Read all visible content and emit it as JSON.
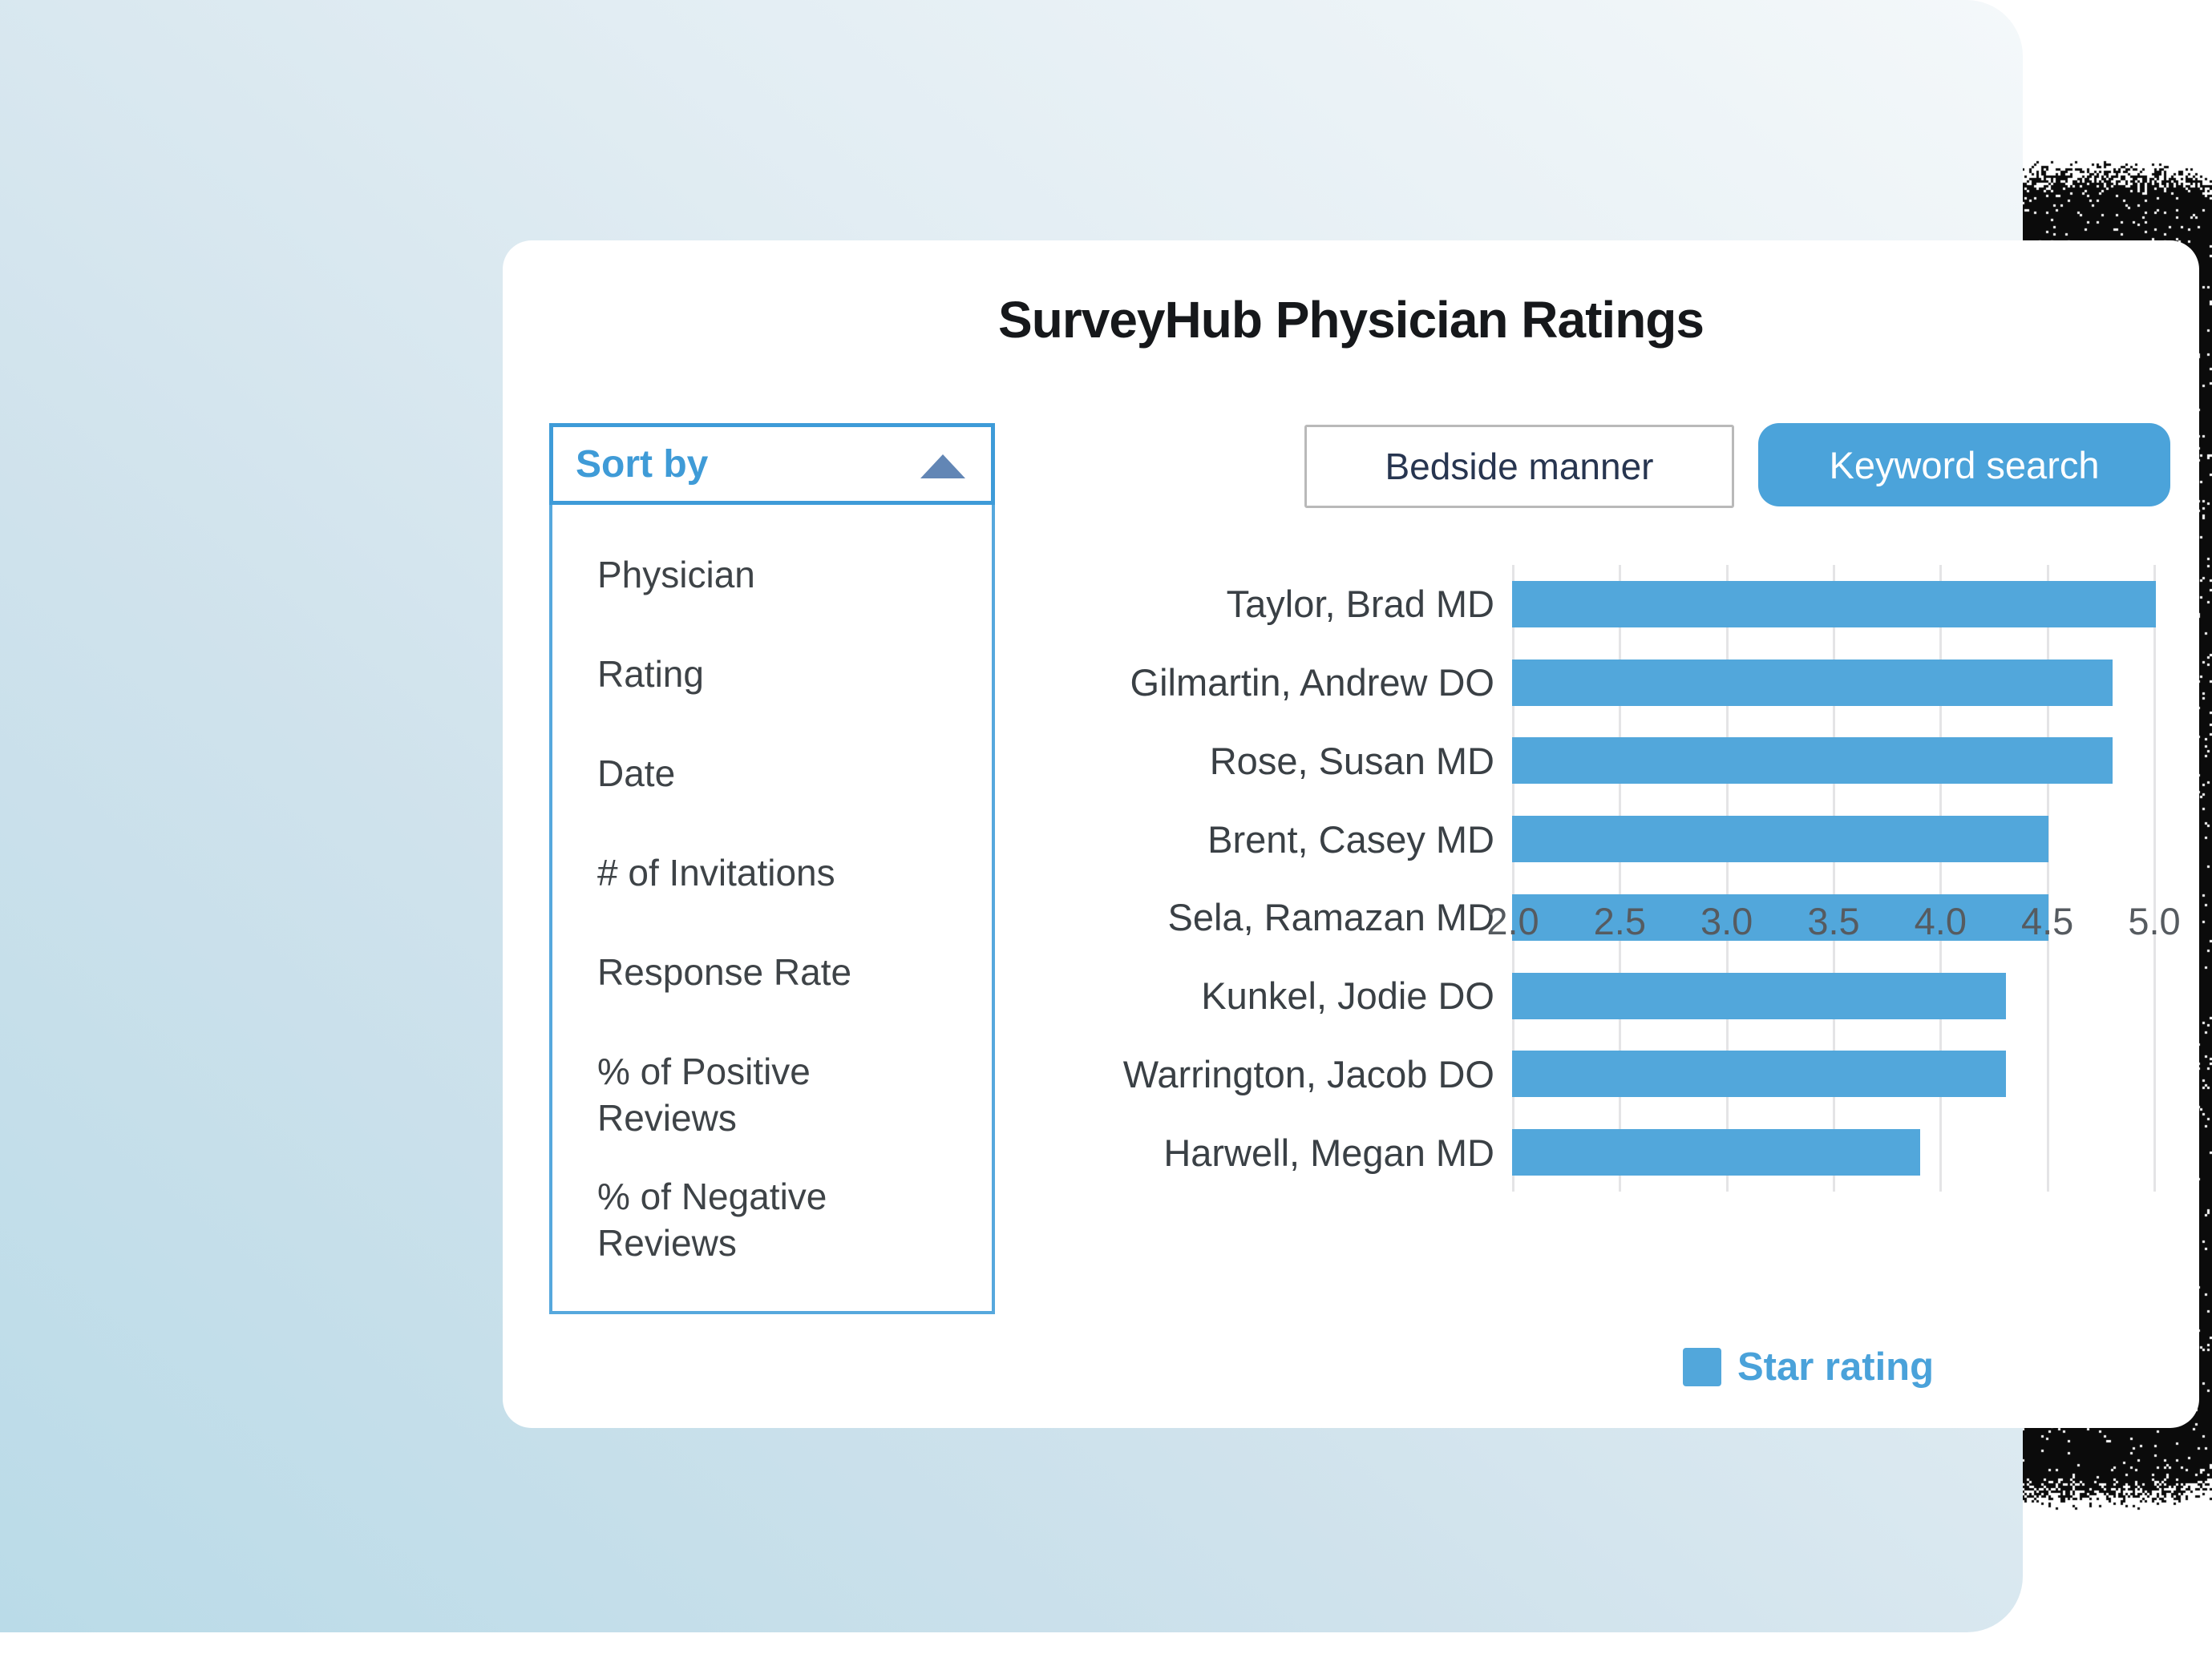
{
  "page": {
    "title": "SurveyHub Physician Ratings"
  },
  "sort_panel": {
    "header_label": "Sort by",
    "collapse_icon": "triangle-up-icon",
    "items": [
      "Physician",
      "Rating",
      "Date",
      "# of Invitations",
      "Response Rate",
      "% of Positive Reviews",
      "% of Negative Reviews"
    ]
  },
  "controls": {
    "metric_selector_value": "Bedside manner",
    "search_button_label": "Keyword search"
  },
  "chart_data": {
    "type": "bar",
    "orientation": "horizontal",
    "categories": [
      "Taylor, Brad MD",
      "Gilmartin, Andrew DO",
      "Rose, Susan MD",
      "Brent, Casey MD",
      "Sela, Ramazan MD",
      "Kunkel, Jodie DO",
      "Warrington, Jacob DO",
      "Harwell, Megan MD"
    ],
    "values": [
      5.0,
      4.8,
      4.8,
      4.5,
      4.5,
      4.3,
      4.3,
      3.9
    ],
    "series_name": "Star rating",
    "xlim": [
      2.0,
      5.0
    ],
    "x_ticks": [
      "2.0",
      "2.5",
      "3.0",
      "3.5",
      "4.0",
      "4.5",
      "5.0"
    ],
    "grid": true,
    "legend_position": "bottom-right",
    "bar_color": "#52a7db"
  },
  "colors": {
    "accent_blue": "#4ba3da",
    "sort_header_blue": "#3f9bd7",
    "triangle_slate_blue": "#6286b5",
    "bar_blue": "#52a7db",
    "legend_text_blue": "#4aa2da",
    "bg_gradient_dark": "#badbe8",
    "bg_gradient_light": "#f4f8fa",
    "card_white": "#ffffff",
    "shadow_black": "#0b0b0b"
  }
}
